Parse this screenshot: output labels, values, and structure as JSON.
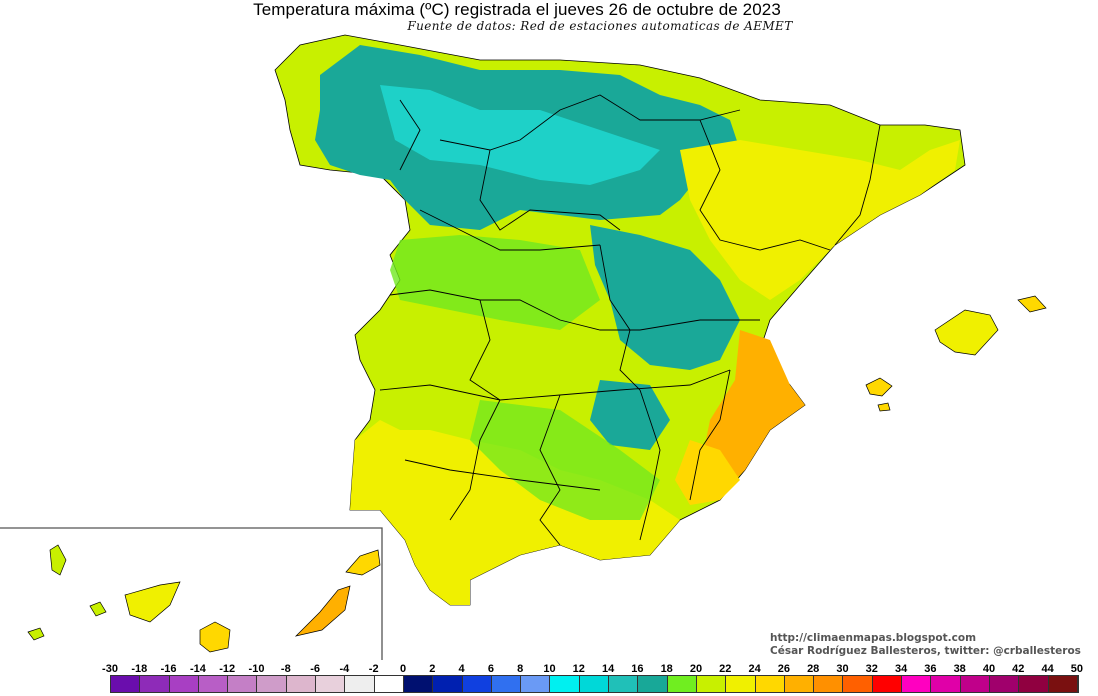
{
  "header": {
    "title": "Temperatura máxima (ºC) registrada el jueves 26 de octubre de 2023",
    "source": "Fuente de datos: Red de estaciones automaticas de AEMET"
  },
  "credits": {
    "blog": "http://climaenmapas.blogspot.com",
    "author": "César Rodríguez Ballesteros, twitter: @crballesteros"
  },
  "legend": {
    "labels": [
      "-30",
      "-18",
      "-16",
      "-14",
      "-12",
      "-10",
      "-8",
      "-6",
      "-4",
      "-2",
      "0",
      "2",
      "4",
      "6",
      "8",
      "10",
      "12",
      "14",
      "16",
      "18",
      "20",
      "22",
      "24",
      "26",
      "28",
      "30",
      "32",
      "34",
      "36",
      "38",
      "40",
      "42",
      "44",
      "50"
    ],
    "colors": [
      "#6a0dad",
      "#8e2bb8",
      "#a83fc3",
      "#b85ec6",
      "#c47fc6",
      "#cf9cc9",
      "#ddb6cd",
      "#e8d0dc",
      "#eeeeee",
      "#ffffff",
      "#001070",
      "#0020b0",
      "#1040e0",
      "#3070f0",
      "#6a9af5",
      "#00f0f0",
      "#00d8d8",
      "#20c0b8",
      "#18a898",
      "#70ee20",
      "#c8f000",
      "#f0f000",
      "#ffd800",
      "#ffb000",
      "#ff9000",
      "#ff6000",
      "#ff0000",
      "#ff00c0",
      "#e000a8",
      "#c0008a",
      "#a0006c",
      "#900040",
      "#7a1010"
    ]
  },
  "map": {
    "colors": {
      "teal": "#1aa898",
      "cyan": "#20d8d0",
      "green": "#70e820",
      "lime": "#c8f000",
      "yellow": "#f0f000",
      "orange": "#ffb000",
      "gold": "#ffd800",
      "border": "#000000"
    }
  }
}
